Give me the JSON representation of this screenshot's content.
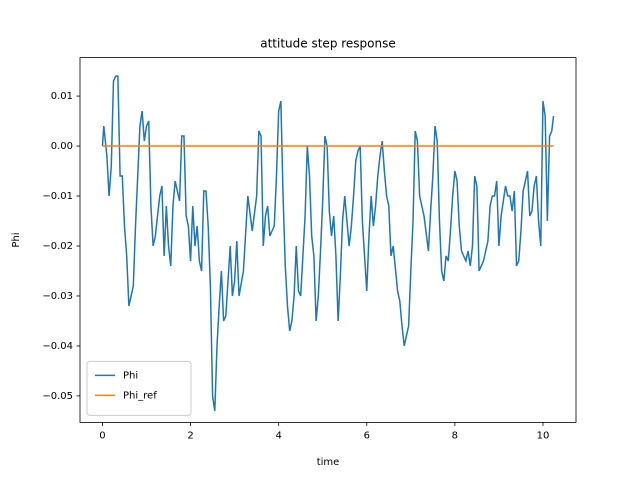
{
  "chart_data": {
    "type": "line",
    "title": "attitude step response",
    "x_label": "time",
    "y_label": "Phi",
    "xlim": [
      -0.51,
      10.75
    ],
    "ylim": [
      -0.0553,
      0.0177
    ],
    "xticks": [
      0,
      2,
      4,
      6,
      8,
      10
    ],
    "yticks": [
      {
        "value": -0.05,
        "label": "−0.05"
      },
      {
        "value": -0.04,
        "label": "−0.04"
      },
      {
        "value": -0.03,
        "label": "−0.03"
      },
      {
        "value": -0.02,
        "label": "−0.02"
      },
      {
        "value": -0.01,
        "label": "−0.01"
      },
      {
        "value": 0,
        "label": "0.00"
      },
      0.01
    ],
    "legend": "lower left",
    "series": [
      {
        "name": "Phi",
        "color": "#1f77b4",
        "x": [
          0,
          0.03,
          0.1,
          0.15,
          0.2,
          0.25,
          0.3,
          0.35,
          0.4,
          0.45,
          0.5,
          0.55,
          0.6,
          0.65,
          0.7,
          0.75,
          0.8,
          0.85,
          0.9,
          0.95,
          1.0,
          1.05,
          1.1,
          1.15,
          1.2,
          1.3,
          1.35,
          1.4,
          1.45,
          1.5,
          1.55,
          1.6,
          1.65,
          1.75,
          1.8,
          1.85,
          1.9,
          1.95,
          2.0,
          2.05,
          2.1,
          2.15,
          2.2,
          2.25,
          2.3,
          2.35,
          2.4,
          2.45,
          2.5,
          2.55,
          2.6,
          2.65,
          2.7,
          2.75,
          2.8,
          2.9,
          2.95,
          3.0,
          3.05,
          3.1,
          3.2,
          3.3,
          3.4,
          3.5,
          3.55,
          3.6,
          3.65,
          3.7,
          3.75,
          3.8,
          3.85,
          3.9,
          3.95,
          4.0,
          4.05,
          4.1,
          4.15,
          4.2,
          4.25,
          4.3,
          4.35,
          4.4,
          4.45,
          4.5,
          4.55,
          4.6,
          4.65,
          4.7,
          4.75,
          4.8,
          4.85,
          4.9,
          4.95,
          5.0,
          5.05,
          5.1,
          5.15,
          5.2,
          5.25,
          5.3,
          5.35,
          5.4,
          5.45,
          5.5,
          5.6,
          5.65,
          5.7,
          5.75,
          5.8,
          5.85,
          5.9,
          5.95,
          6.0,
          6.05,
          6.1,
          6.15,
          6.2,
          6.25,
          6.3,
          6.35,
          6.4,
          6.45,
          6.5,
          6.55,
          6.6,
          6.7,
          6.75,
          6.8,
          6.85,
          6.9,
          6.95,
          7.0,
          7.05,
          7.1,
          7.15,
          7.2,
          7.3,
          7.4,
          7.45,
          7.5,
          7.55,
          7.6,
          7.65,
          7.7,
          7.75,
          7.8,
          7.85,
          7.9,
          7.95,
          8.0,
          8.05,
          8.1,
          8.15,
          8.2,
          8.25,
          8.3,
          8.35,
          8.4,
          8.45,
          8.5,
          8.55,
          8.6,
          8.65,
          8.7,
          8.75,
          8.8,
          8.85,
          8.9,
          8.95,
          9.0,
          9.05,
          9.1,
          9.15,
          9.2,
          9.25,
          9.3,
          9.35,
          9.4,
          9.45,
          9.5,
          9.55,
          9.6,
          9.65,
          9.7,
          9.75,
          9.8,
          9.85,
          9.9,
          9.95,
          10.0,
          10.05,
          10.1,
          10.15,
          10.2,
          10.24
        ],
        "values": [
          0,
          0.004,
          -0.002,
          -0.01,
          -0.004,
          0.013,
          0.014,
          0.014,
          -0.006,
          -0.006,
          -0.016,
          -0.022,
          -0.032,
          -0.03,
          -0.028,
          -0.016,
          -0.006,
          0.004,
          0.007,
          0.001,
          0.004,
          0.005,
          -0.012,
          -0.02,
          -0.018,
          -0.01,
          -0.008,
          -0.022,
          -0.012,
          -0.02,
          -0.024,
          -0.012,
          -0.007,
          -0.011,
          0.002,
          0.002,
          -0.014,
          -0.016,
          -0.023,
          -0.012,
          -0.02,
          -0.016,
          -0.023,
          -0.025,
          -0.009,
          -0.009,
          -0.016,
          -0.028,
          -0.05,
          -0.053,
          -0.04,
          -0.032,
          -0.025,
          -0.035,
          -0.034,
          -0.02,
          -0.03,
          -0.027,
          -0.019,
          -0.03,
          -0.025,
          -0.01,
          -0.017,
          -0.01,
          0.003,
          0.002,
          -0.02,
          -0.014,
          -0.012,
          -0.018,
          -0.017,
          -0.016,
          -0.006,
          0.007,
          0.009,
          -0.01,
          -0.024,
          -0.032,
          -0.037,
          -0.035,
          -0.03,
          -0.02,
          -0.029,
          -0.03,
          -0.022,
          -0.014,
          0.0,
          -0.006,
          -0.018,
          -0.022,
          -0.035,
          -0.03,
          -0.021,
          -0.011,
          0.002,
          0.0,
          -0.013,
          -0.018,
          -0.014,
          -0.022,
          -0.035,
          -0.026,
          -0.015,
          -0.01,
          -0.02,
          -0.016,
          -0.01,
          -0.003,
          -0.001,
          0.0,
          -0.015,
          -0.022,
          -0.029,
          -0.018,
          -0.01,
          -0.016,
          -0.012,
          -0.006,
          -0.002,
          0.001,
          -0.005,
          -0.01,
          -0.012,
          -0.022,
          -0.02,
          -0.029,
          -0.031,
          -0.036,
          -0.04,
          -0.038,
          -0.036,
          -0.025,
          -0.015,
          0.003,
          0.001,
          -0.01,
          -0.014,
          -0.021,
          -0.013,
          -0.006,
          0.004,
          0.001,
          -0.015,
          -0.025,
          -0.027,
          -0.022,
          -0.023,
          -0.017,
          -0.01,
          -0.005,
          -0.007,
          -0.016,
          -0.021,
          -0.022,
          -0.023,
          -0.021,
          -0.024,
          -0.02,
          -0.006,
          -0.008,
          -0.025,
          -0.024,
          -0.023,
          -0.021,
          -0.019,
          -0.012,
          -0.01,
          -0.01,
          -0.007,
          -0.02,
          -0.014,
          -0.011,
          -0.008,
          -0.01,
          -0.01,
          -0.013,
          -0.009,
          -0.024,
          -0.023,
          -0.017,
          -0.009,
          -0.007,
          -0.005,
          -0.014,
          -0.013,
          -0.008,
          -0.006,
          -0.015,
          -0.02,
          0.009,
          0.006,
          -0.015,
          0.002,
          0.003,
          0.006
        ]
      },
      {
        "name": "Phi_ref",
        "color": "#ff7f0e",
        "x": [
          0,
          10.24
        ],
        "values": [
          0,
          0
        ]
      }
    ]
  }
}
